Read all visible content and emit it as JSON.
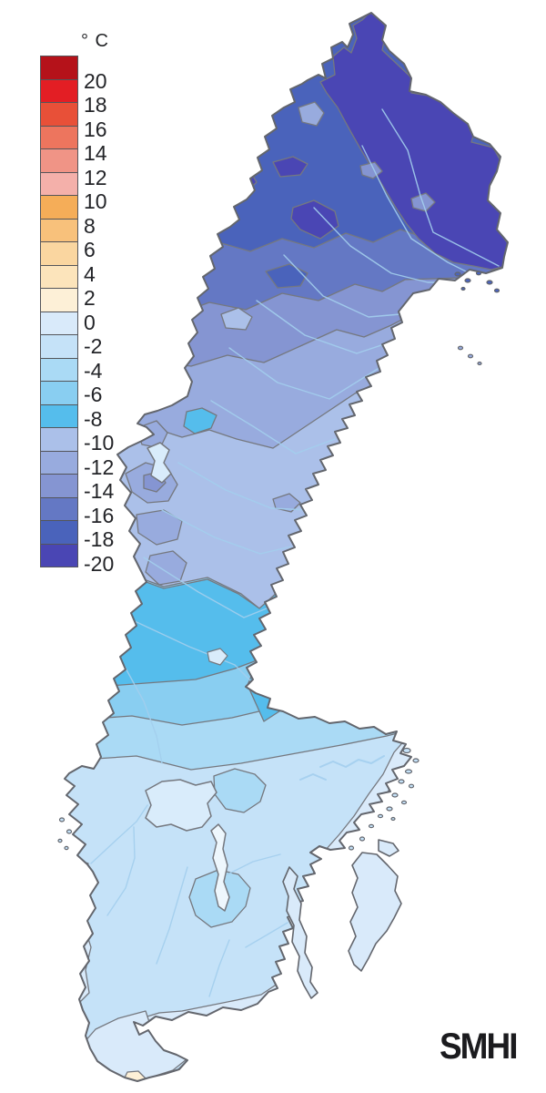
{
  "window": {
    "background": "#ffffff"
  },
  "legend": {
    "unit_label": "° C",
    "cell_colors": [
      "#b5121a",
      "#e31e24",
      "#e85038",
      "#ed755e",
      "#f09486",
      "#f4b0aa",
      "#f5ad58",
      "#f8c17b",
      "#fad6a0",
      "#fce4bb",
      "#fdf0d7",
      "#d9eafa",
      "#c5e2f8",
      "#aadaf5",
      "#89cef1",
      "#55bdec",
      "#abc0e9",
      "#98abde",
      "#8595d2",
      "#6478c4",
      "#4a63bb",
      "#4a46b4"
    ],
    "tick_labels": [
      "20",
      "18",
      "16",
      "14",
      "12",
      "10",
      "8",
      "6",
      "4",
      "2",
      "0",
      "-2",
      "-4",
      "-6",
      "-8",
      "-10",
      "-12",
      "-14",
      "-16",
      "-18",
      "-20"
    ]
  },
  "map": {
    "outline_color": "#63666d",
    "zone_border_color": "#75787f",
    "river_color": "#a3cfee",
    "lake_fill": "#d9ecfb",
    "lake_fill_bright": "#eef7fd",
    "zone_colors": {
      "p0_2": "#fdf0d7",
      "m2_0": "#d9eafa",
      "m4_m2": "#c5e2f8",
      "m6_m4": "#aadaf5",
      "m8_m6": "#89cef1",
      "m10_m8": "#55bdec",
      "m12_m10": "#abc0e9",
      "m14_m12": "#98abde",
      "m16_m14": "#8595d2",
      "m18_m16": "#6478c4",
      "m20_m18": "#4a63bb",
      "ltm20": "#4a46b4"
    }
  },
  "branding": {
    "logo_text": "SMHI",
    "logo_color": "#1b1b1e"
  }
}
